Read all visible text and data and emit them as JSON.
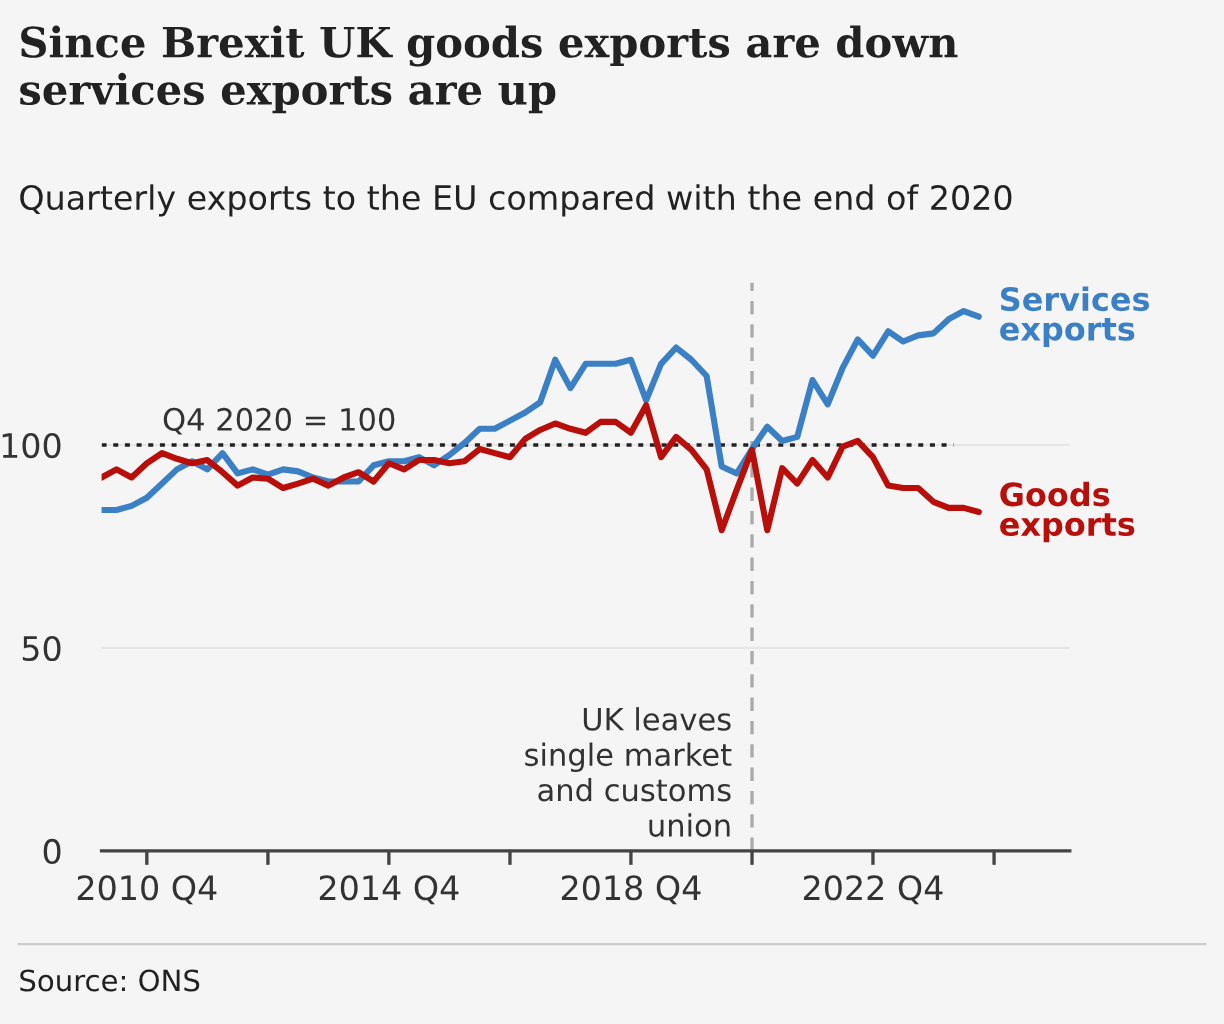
{
  "chart_data": {
    "type": "line",
    "title": "Since Brexit UK goods exports are down\nservices exports are up",
    "subtitle": "Quarterly exports to the EU compared with the end of 2020",
    "x": [
      "2010-01",
      "2010-04",
      "2010-07",
      "2010-10",
      "2011-01",
      "2011-04",
      "2011-07",
      "2011-10",
      "2012-01",
      "2012-04",
      "2012-07",
      "2012-10",
      "2013-01",
      "2013-04",
      "2013-07",
      "2013-10",
      "2014-01",
      "2014-04",
      "2014-07",
      "2014-10",
      "2015-01",
      "2015-04",
      "2015-07",
      "2015-10",
      "2016-01",
      "2016-04",
      "2016-07",
      "2016-10",
      "2017-01",
      "2017-04",
      "2017-07",
      "2017-10",
      "2018-01",
      "2018-04",
      "2018-07",
      "2018-10",
      "2019-01",
      "2019-04",
      "2019-07",
      "2019-10",
      "2020-01",
      "2020-04",
      "2020-07",
      "2020-10",
      "2021-01",
      "2021-04",
      "2021-07",
      "2021-10",
      "2022-01",
      "2022-04",
      "2022-07",
      "2022-10",
      "2023-01",
      "2023-04",
      "2023-07",
      "2023-10",
      "2024-01",
      "2024-04",
      "2024-07"
    ],
    "series": [
      {
        "name": "Services\nexports",
        "color": "#3b7fc4",
        "values": [
          84,
          84,
          85,
          87,
          90.5,
          94,
          96,
          94,
          98,
          93,
          94,
          92.7,
          94,
          93.5,
          92,
          91,
          91,
          91,
          95,
          96,
          96,
          97,
          95,
          97.5,
          100.5,
          104,
          104,
          106,
          108,
          110.5,
          121,
          114,
          120,
          120,
          120,
          121,
          111,
          120,
          124,
          121,
          117,
          94.7,
          93,
          99,
          104.5,
          101,
          102,
          116,
          110,
          119,
          126,
          122,
          128,
          125.5,
          127,
          127.5,
          131,
          133,
          131.6
        ]
      },
      {
        "name": "Goods\nexports",
        "color": "#b80f0a",
        "values": [
          92,
          94,
          92,
          95.5,
          98,
          96.6,
          95.5,
          96.3,
          93.3,
          90,
          92,
          91.7,
          89.4,
          90.5,
          91.7,
          90,
          92,
          93.3,
          91,
          95.5,
          94,
          96.3,
          96.3,
          95.5,
          96,
          99,
          98,
          97,
          101.5,
          103.7,
          105.3,
          104,
          103,
          105.7,
          105.7,
          103,
          109.8,
          97,
          102,
          98.8,
          94,
          79,
          89,
          98.8,
          79,
          94.3,
          90.5,
          96.3,
          92,
          99.6,
          101,
          97,
          90,
          89.4,
          89.4,
          86,
          84.5,
          84.5,
          83.5
        ]
      }
    ],
    "xlim": [
      "2010-01",
      "2026-01"
    ],
    "xticks": [
      {
        "value": "2010-10",
        "label": "2010 Q4"
      },
      {
        "value": "2012-10",
        "label": null
      },
      {
        "value": "2014-10",
        "label": "2014 Q4"
      },
      {
        "value": "2016-10",
        "label": null
      },
      {
        "value": "2018-10",
        "label": "2018 Q4"
      },
      {
        "value": "2020-10",
        "label": null
      },
      {
        "value": "2022-10",
        "label": "2022 Q4"
      },
      {
        "value": "2024-10",
        "label": null
      }
    ],
    "ylim": [
      0,
      140
    ],
    "yticks": [
      0,
      50,
      100
    ],
    "grid": "y",
    "legend": false,
    "ref_lines": [
      {
        "axis": "y",
        "value": 100,
        "label": "Q4 2020 = 100",
        "color": "#222222",
        "line_style": "dotted"
      },
      {
        "axis": "x",
        "value": "2020-10",
        "label": "UK leaves\nsingle market\nand customs\nunion",
        "color": "#aaaaaa",
        "line_style": "dashed"
      }
    ],
    "annotations": [
      "Source: ONS"
    ]
  }
}
